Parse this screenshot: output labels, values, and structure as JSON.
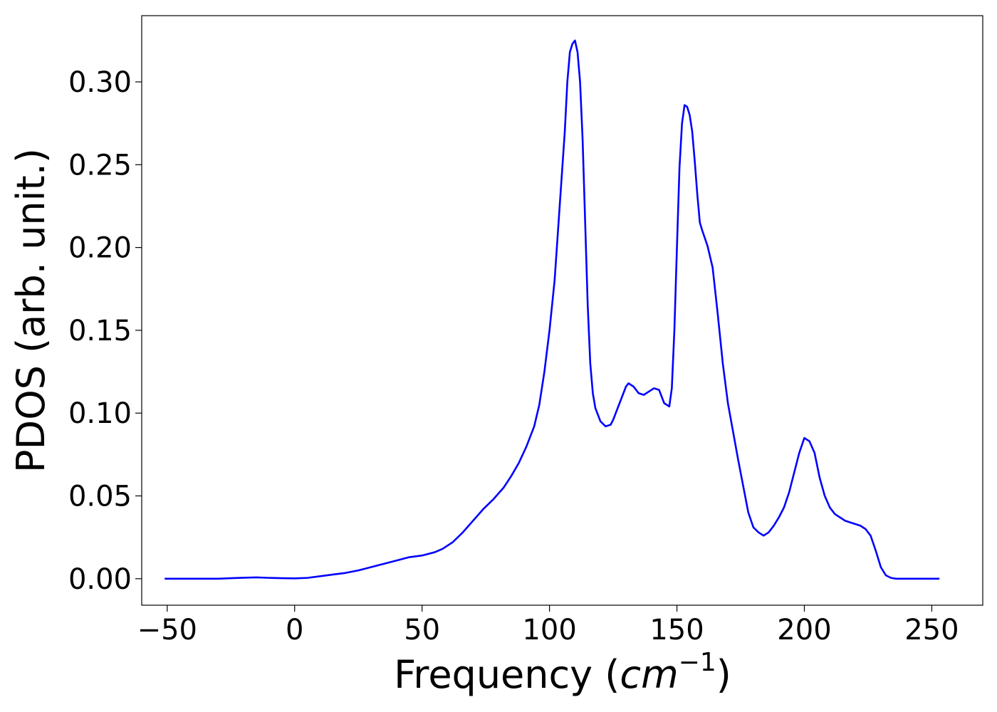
{
  "chart_data": {
    "type": "line",
    "title": "",
    "xlabel": "Frequency (",
    "xlabel_unit": "cm",
    "xlabel_exp": "−1",
    "xlabel_close": ")",
    "ylabel": "PDOS (arb. unit.)",
    "xlim": [
      -60,
      270
    ],
    "ylim": [
      -0.016,
      0.34
    ],
    "xticks": [
      -50,
      0,
      50,
      100,
      150,
      200,
      250
    ],
    "xtick_labels": [
      "−50",
      "0",
      "50",
      "100",
      "150",
      "200",
      "250"
    ],
    "yticks": [
      0.0,
      0.05,
      0.1,
      0.15,
      0.2,
      0.25,
      0.3
    ],
    "ytick_labels": [
      "0.00",
      "0.05",
      "0.10",
      "0.15",
      "0.20",
      "0.25",
      "0.30"
    ],
    "grid": false,
    "series": [
      {
        "color": "#0000ff",
        "x": [
          -51,
          -40,
          -30,
          -25,
          -20,
          -15,
          -10,
          -5,
          0,
          5,
          10,
          15,
          20,
          25,
          30,
          35,
          40,
          45,
          50,
          55,
          58,
          62,
          66,
          70,
          74,
          78,
          82,
          85,
          88,
          91,
          94,
          96,
          98,
          100,
          102,
          104,
          106,
          107,
          108,
          109,
          110,
          111,
          112,
          113,
          114,
          115,
          116,
          117,
          118,
          120,
          122,
          124,
          125,
          126,
          128,
          130,
          131,
          133,
          135,
          137,
          139,
          141,
          143,
          145,
          147,
          148,
          149,
          150,
          151,
          152,
          153,
          154,
          155,
          156,
          157,
          158,
          159,
          160,
          162,
          164,
          166,
          168,
          170,
          172,
          174,
          176,
          178,
          180,
          182,
          184,
          186,
          188,
          190,
          192,
          194,
          196,
          198,
          200,
          201,
          202,
          204,
          206,
          208,
          210,
          212,
          214,
          216,
          218,
          220,
          222,
          224,
          226,
          228,
          230,
          232,
          234,
          236,
          240,
          245,
          253
        ],
        "y": [
          0,
          0,
          0,
          0.0003,
          0.0006,
          0.0008,
          0.0005,
          0.0003,
          0.0002,
          0.0005,
          0.0015,
          0.0025,
          0.0035,
          0.005,
          0.007,
          0.009,
          0.011,
          0.013,
          0.014,
          0.016,
          0.018,
          0.022,
          0.028,
          0.035,
          0.042,
          0.048,
          0.055,
          0.062,
          0.07,
          0.08,
          0.092,
          0.105,
          0.125,
          0.15,
          0.18,
          0.225,
          0.27,
          0.3,
          0.318,
          0.323,
          0.325,
          0.318,
          0.3,
          0.265,
          0.215,
          0.165,
          0.13,
          0.112,
          0.103,
          0.095,
          0.092,
          0.093,
          0.096,
          0.1,
          0.108,
          0.116,
          0.118,
          0.116,
          0.112,
          0.111,
          0.113,
          0.115,
          0.114,
          0.106,
          0.104,
          0.115,
          0.15,
          0.2,
          0.248,
          0.275,
          0.286,
          0.285,
          0.28,
          0.27,
          0.252,
          0.232,
          0.215,
          0.21,
          0.201,
          0.188,
          0.16,
          0.13,
          0.106,
          0.089,
          0.072,
          0.056,
          0.04,
          0.031,
          0.028,
          0.026,
          0.028,
          0.032,
          0.037,
          0.043,
          0.052,
          0.064,
          0.076,
          0.085,
          0.084,
          0.083,
          0.076,
          0.061,
          0.05,
          0.043,
          0.039,
          0.037,
          0.035,
          0.034,
          0.033,
          0.032,
          0.03,
          0.026,
          0.017,
          0.007,
          0.002,
          0.0005,
          0,
          0,
          0,
          0
        ]
      }
    ]
  }
}
